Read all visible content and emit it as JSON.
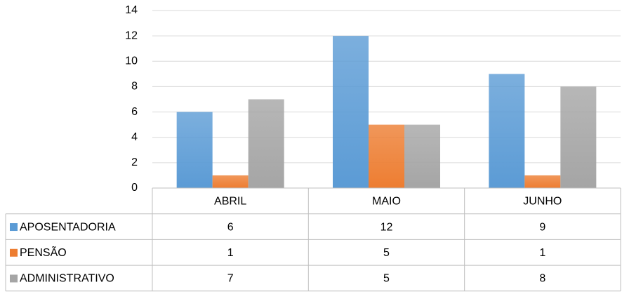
{
  "chart_data": {
    "type": "bar",
    "categories": [
      "ABRIL",
      "MAIO",
      "JUNHO"
    ],
    "series": [
      {
        "name": "APOSENTADORIA",
        "color": "#5b9bd5",
        "values": [
          6,
          12,
          9
        ]
      },
      {
        "name": "PENSÃO",
        "color": "#ed7d31",
        "values": [
          1,
          5,
          1
        ]
      },
      {
        "name": "ADMINISTRATIVO",
        "color": "#a5a5a5",
        "values": [
          7,
          5,
          8
        ]
      }
    ],
    "ylim": [
      0,
      14
    ],
    "yticks": [
      0,
      2,
      4,
      6,
      8,
      10,
      12,
      14
    ],
    "grid": true,
    "data_table": true
  }
}
